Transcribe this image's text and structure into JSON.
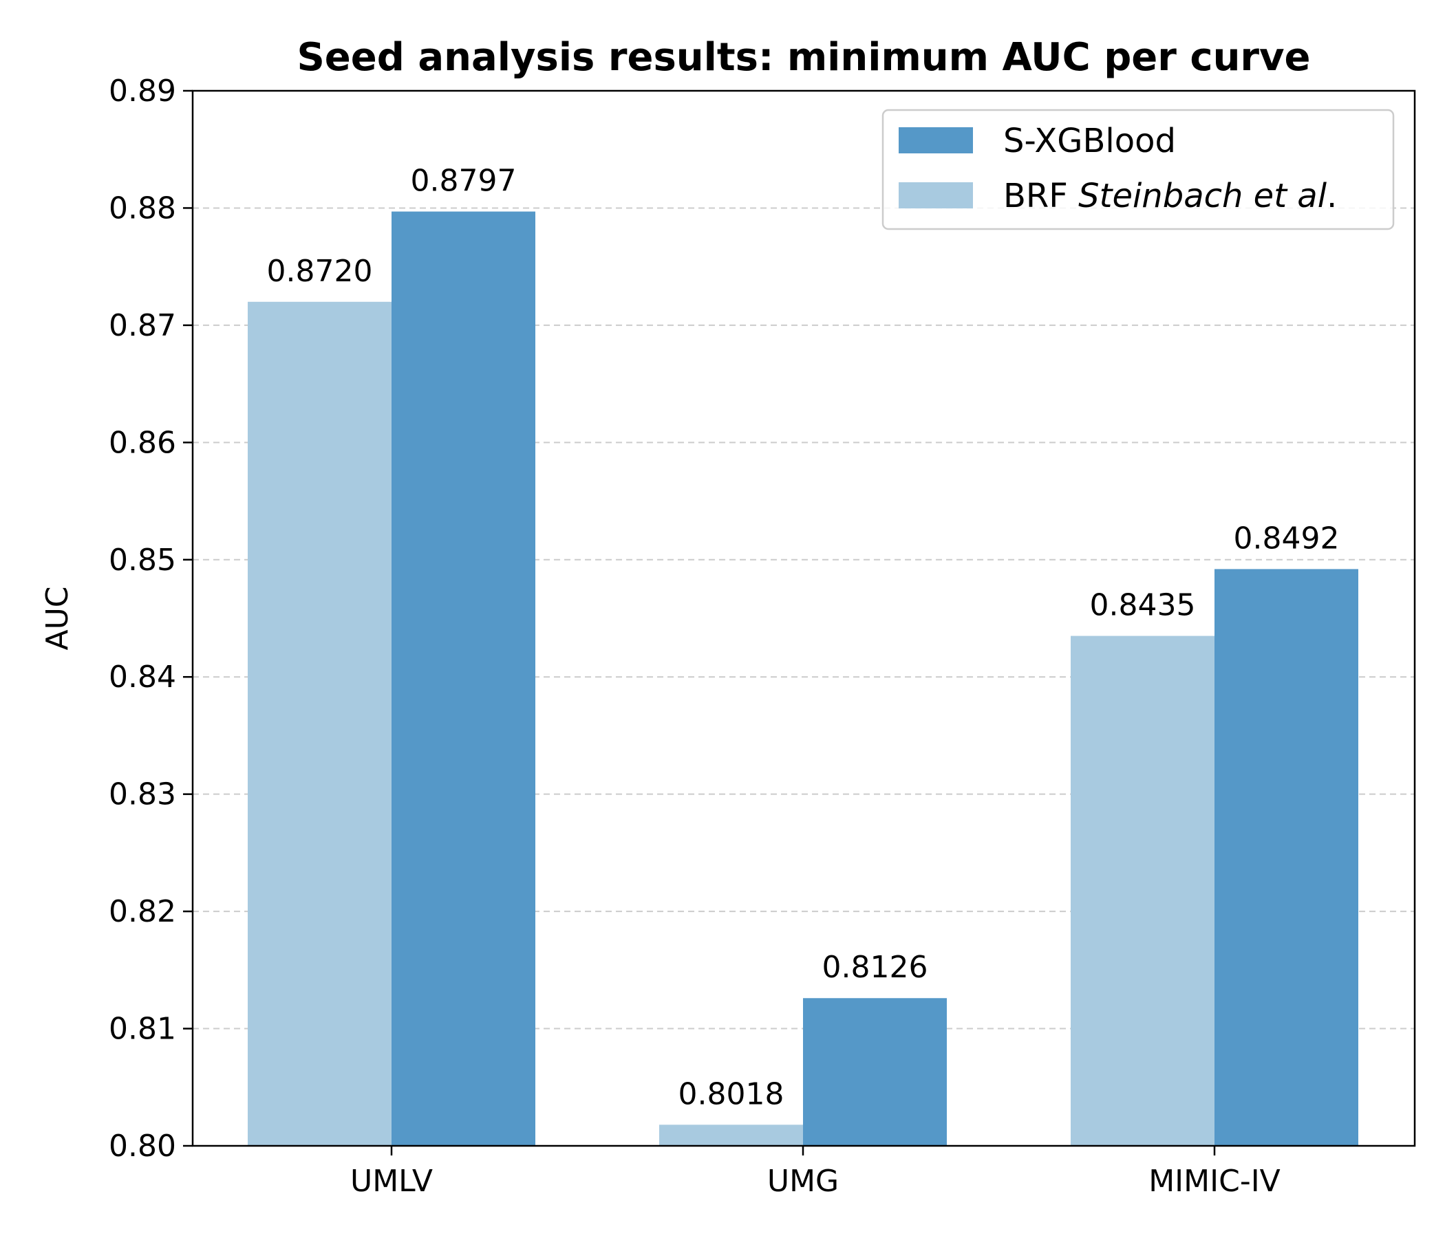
{
  "chart_data": {
    "type": "bar",
    "title": "Seed analysis results: minimum AUC per curve",
    "xlabel": "",
    "ylabel": "AUC",
    "categories": [
      "UMLV",
      "UMG",
      "MIMIC-IV"
    ],
    "ylim": [
      0.8,
      0.89
    ],
    "yticks": [
      "0.80",
      "0.81",
      "0.82",
      "0.83",
      "0.84",
      "0.85",
      "0.86",
      "0.87",
      "0.88",
      "0.89"
    ],
    "grid": "y dashed",
    "legend_position": "top-right",
    "series": [
      {
        "name": "BRF",
        "name_italic": "Steinbach et al",
        "name_suffix": ".",
        "color": "#a8cae0",
        "values": [
          0.872,
          0.8018,
          0.8435
        ],
        "labels": [
          "0.8720",
          "0.8018",
          "0.8435"
        ]
      },
      {
        "name": "S-XGBlood",
        "color": "#5598c8",
        "values": [
          0.8797,
          0.8126,
          0.8492
        ],
        "labels": [
          "0.8797",
          "0.8126",
          "0.8492"
        ]
      }
    ],
    "legend_order": [
      1,
      0
    ]
  }
}
